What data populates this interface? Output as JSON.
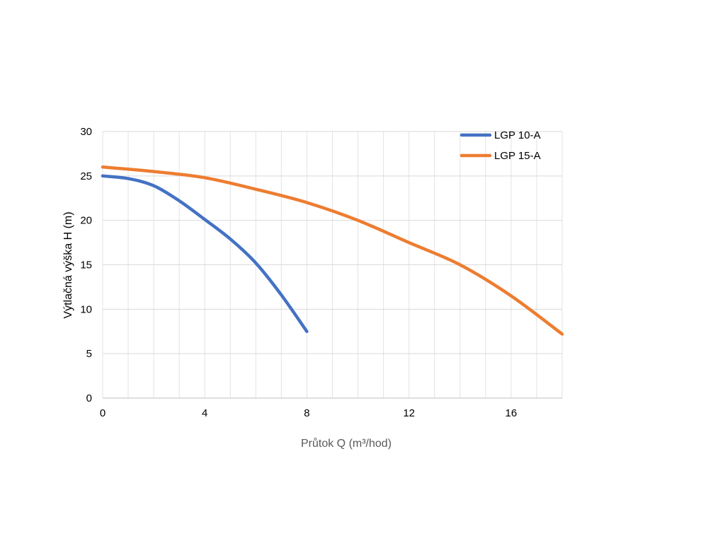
{
  "chart_data": {
    "type": "line",
    "xlabel": "Průtok Q (m³/hod)",
    "ylabel": "Výtlačná výška H (m)",
    "xlim": [
      0,
      18
    ],
    "ylim": [
      0,
      30
    ],
    "x_ticks": [
      "0",
      "4",
      "8",
      "12",
      "16"
    ],
    "y_ticks": [
      "0",
      "5",
      "10",
      "15",
      "20",
      "25",
      "30"
    ],
    "grid": true,
    "legend_position": "top-right",
    "series": [
      {
        "name": "LGP 10-A",
        "color": "#4472C4",
        "points": [
          [
            0,
            25
          ],
          [
            1,
            24.7
          ],
          [
            2,
            23.9
          ],
          [
            3,
            22.2
          ],
          [
            4,
            20.1
          ],
          [
            5,
            17.9
          ],
          [
            6,
            15.2
          ],
          [
            7,
            11.6
          ],
          [
            8,
            7.5
          ]
        ]
      },
      {
        "name": "LGP 15-A",
        "color": "#ED7D31",
        "points": [
          [
            0,
            26
          ],
          [
            2,
            25.5
          ],
          [
            4,
            24.8
          ],
          [
            6,
            23.5
          ],
          [
            8,
            22
          ],
          [
            10,
            20
          ],
          [
            12,
            17.5
          ],
          [
            14,
            15
          ],
          [
            16,
            11.5
          ],
          [
            18,
            7.2
          ]
        ]
      }
    ]
  }
}
